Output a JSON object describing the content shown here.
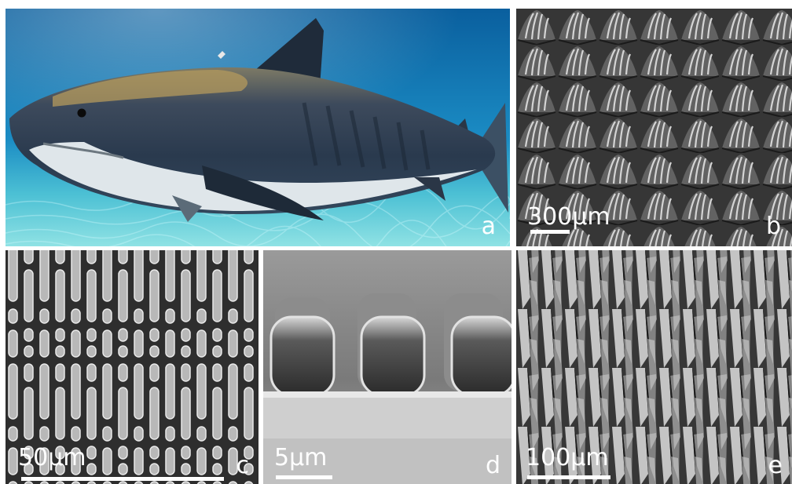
{
  "panels": {
    "a": {
      "label": "a",
      "label_color": "#ffffff"
    },
    "b": {
      "label": "b",
      "label_color": "#ffffff",
      "scale": "300µm"
    },
    "c": {
      "label": "c",
      "label_color": "#ffffff",
      "scale": "50µm"
    },
    "d": {
      "label": "d",
      "label_color": "#ffffff",
      "scale": "5µm"
    },
    "e": {
      "label": "e",
      "label_color": "#ffffff",
      "scale": "100µm"
    }
  },
  "colors": {
    "water_top": "#0c6fb0",
    "water_bottom": "#6fd0dc",
    "sem_dark": "#2f2f2f",
    "sem_light": "#d8d8d8"
  }
}
